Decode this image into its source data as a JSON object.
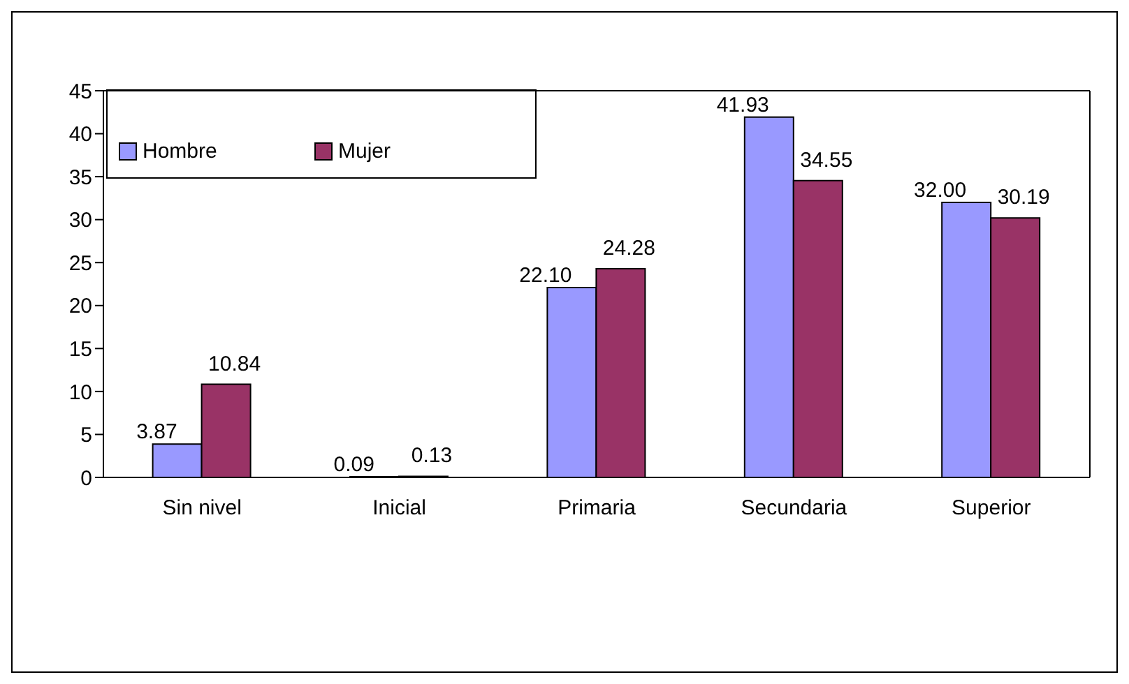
{
  "chart_data": {
    "type": "bar",
    "categories": [
      "Sin nivel",
      "Inicial",
      "Primaria",
      "Secundaria",
      "Superior"
    ],
    "series": [
      {
        "name": "Hombre",
        "color": "#9999ff",
        "values": [
          3.87,
          0.09,
          22.1,
          41.93,
          32.0
        ],
        "value_labels": [
          "3.87",
          "0.09",
          "22.10",
          "41.93",
          "32.00"
        ]
      },
      {
        "name": "Mujer",
        "color": "#993366",
        "values": [
          10.84,
          0.13,
          24.28,
          34.55,
          30.19
        ],
        "value_labels": [
          "10.84",
          "0.13",
          "24.28",
          "34.55",
          "30.19"
        ]
      }
    ],
    "ylim": [
      0,
      45
    ],
    "yticks": [
      0,
      5,
      10,
      15,
      20,
      25,
      30,
      35,
      40,
      45
    ],
    "grid": false,
    "legend": "top left"
  }
}
